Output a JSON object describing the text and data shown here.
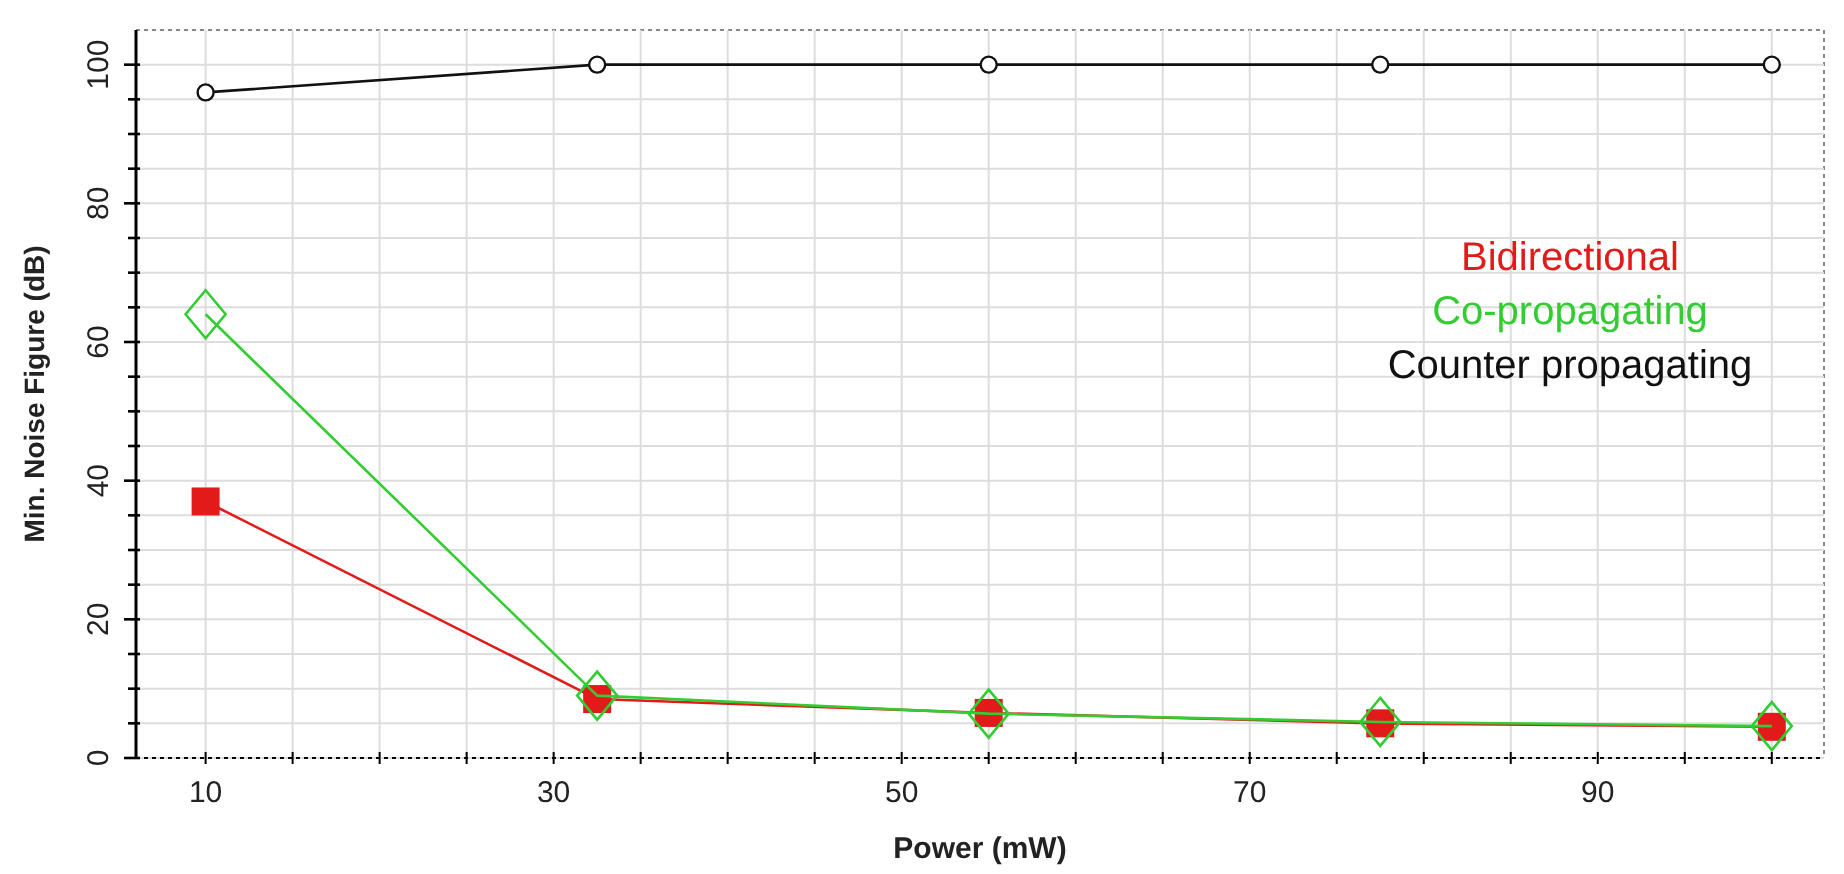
{
  "chart_data": {
    "type": "line",
    "xlabel": "Power (mW)",
    "ylabel": "Min. Noise Figure (dB)",
    "x": [
      10,
      32.5,
      55,
      77.5,
      100
    ],
    "series": [
      {
        "name": "Bidirectional",
        "color": "#e31a1a",
        "marker": "square",
        "values": [
          37,
          8.5,
          6.5,
          5,
          4.5
        ]
      },
      {
        "name": "Co-propagating",
        "color": "#33cc33",
        "marker": "diamond",
        "values": [
          64,
          9,
          6.4,
          5.2,
          4.6
        ]
      },
      {
        "name": "Counter propagating",
        "color": "#111111",
        "marker": "circle",
        "values": [
          96,
          100,
          100,
          100,
          100
        ]
      }
    ],
    "xlim": [
      6,
      103
    ],
    "xticks": [
      10,
      {
        "value": 15,
        "label": null
      },
      {
        "value": 20,
        "label": null
      },
      {
        "value": 25,
        "label": null
      },
      30,
      {
        "value": 35,
        "label": null
      },
      {
        "value": 40,
        "label": null
      },
      {
        "value": 45,
        "label": null
      },
      50,
      {
        "value": 55,
        "label": null
      },
      {
        "value": 60,
        "label": null
      },
      {
        "value": 65,
        "label": null
      },
      70,
      {
        "value": 75,
        "label": null
      },
      {
        "value": 80,
        "label": null
      },
      {
        "value": 85,
        "label": null
      },
      90,
      {
        "value": 95,
        "label": null
      },
      {
        "value": 100,
        "label": null
      }
    ],
    "ylim": [
      0,
      105
    ],
    "yticks": [
      0,
      {
        "value": 5,
        "label": null
      },
      {
        "value": 10,
        "label": null
      },
      {
        "value": 15,
        "label": null
      },
      20,
      {
        "value": 25,
        "label": null
      },
      {
        "value": 30,
        "label": null
      },
      {
        "value": 35,
        "label": null
      },
      40,
      {
        "value": 45,
        "label": null
      },
      {
        "value": 50,
        "label": null
      },
      {
        "value": 55,
        "label": null
      },
      60,
      {
        "value": 65,
        "label": null
      },
      {
        "value": 70,
        "label": null
      },
      {
        "value": 75,
        "label": null
      },
      80,
      {
        "value": 85,
        "label": null
      },
      {
        "value": 90,
        "label": null
      },
      {
        "value": 95,
        "label": null
      },
      100
    ],
    "grid": true,
    "legend": "right",
    "line_style": "solid"
  }
}
